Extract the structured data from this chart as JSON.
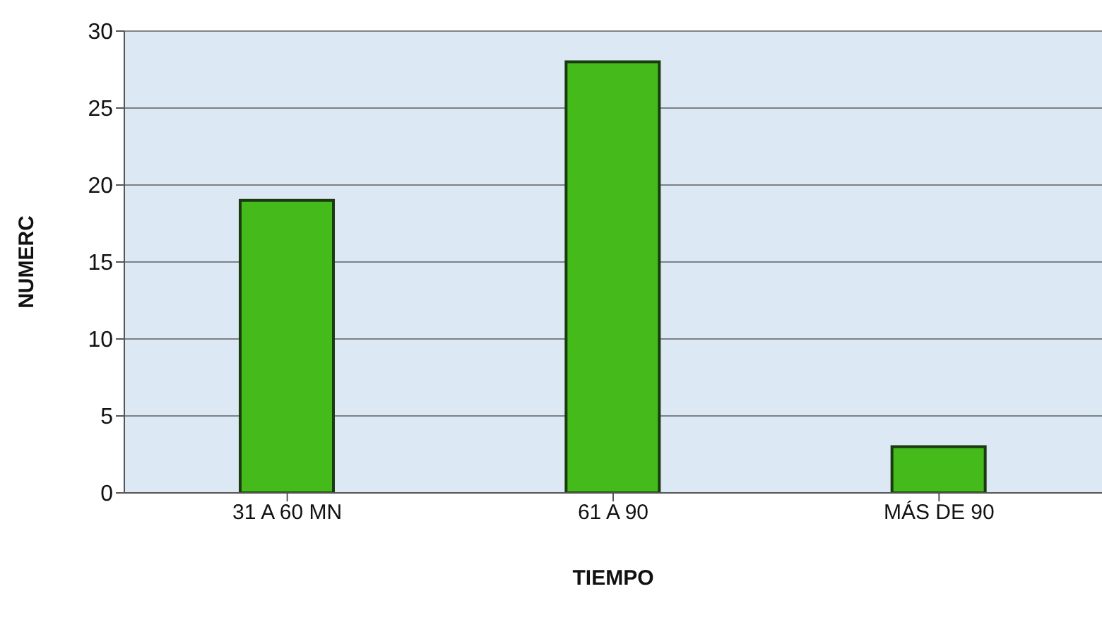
{
  "chart_data": {
    "type": "bar",
    "xlabel": "TIEMPO",
    "ylabel": "NUMERC",
    "categories": [
      "31 A 60 MN",
      "61 A 90",
      "MÁS DE 90"
    ],
    "values": [
      19,
      28,
      3
    ],
    "color": "#44bb1a",
    "ylim": [
      0,
      30
    ],
    "yticks": [
      0,
      5,
      10,
      15,
      20,
      25,
      30
    ],
    "grid": "y"
  }
}
